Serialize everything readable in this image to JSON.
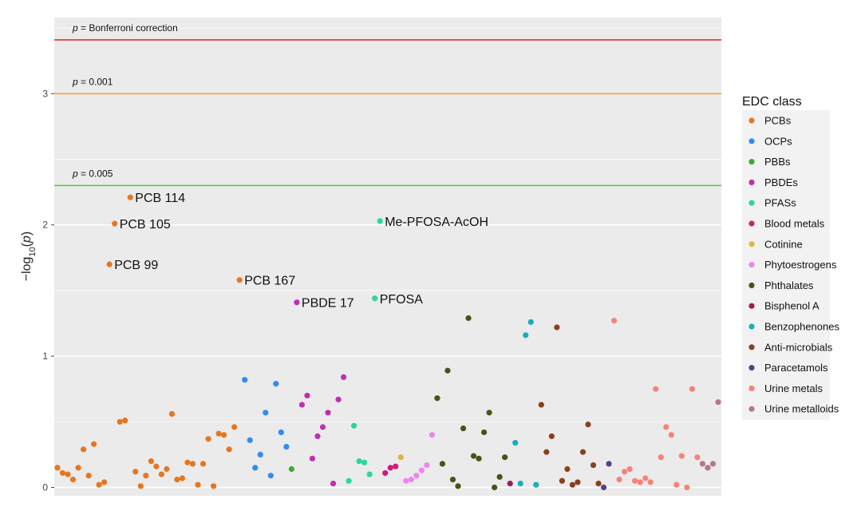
{
  "chart_data": {
    "type": "scatter",
    "ylabel_prefix": "−log",
    "ylabel_sub": "10",
    "ylabel_suffix": "(p)",
    "ylabel_var": "p",
    "ylim": [
      -0.05,
      3.6
    ],
    "yticks": [
      0,
      1,
      2,
      3
    ],
    "grid": true,
    "legend_position": "right",
    "legend_title": "EDC class",
    "reference_lines": [
      {
        "label_italic": "p",
        "label_rest": " = Bonferroni correction",
        "value": 3.41,
        "color": "#e8302e"
      },
      {
        "label_italic": "p",
        "label_rest": " = 0.001",
        "value": 3.0,
        "color": "#f6a623"
      },
      {
        "label_italic": "p",
        "label_rest": " = 0.005",
        "value": 2.3,
        "color": "#3fd42b"
      }
    ],
    "series": [
      {
        "name": "PCBs",
        "color": "#e6761f",
        "points": [
          [
            1,
            0.15
          ],
          [
            2,
            0.11
          ],
          [
            3,
            0.1
          ],
          [
            4,
            0.06
          ],
          [
            5,
            0.15
          ],
          [
            6,
            0.29
          ],
          [
            7,
            0.09
          ],
          [
            8,
            0.33
          ],
          [
            9,
            0.02
          ],
          [
            10,
            0.04
          ],
          [
            11,
            1.7
          ],
          [
            12,
            2.01
          ],
          [
            13,
            0.5
          ],
          [
            14,
            0.51
          ],
          [
            15,
            2.21
          ],
          [
            16,
            0.12
          ],
          [
            17,
            0.01
          ],
          [
            18,
            0.09
          ],
          [
            19,
            0.2
          ],
          [
            20,
            0.16
          ],
          [
            21,
            0.1
          ],
          [
            22,
            0.14
          ],
          [
            23,
            0.56
          ],
          [
            24,
            0.06
          ],
          [
            25,
            0.07
          ],
          [
            26,
            0.19
          ],
          [
            27,
            0.18
          ],
          [
            28,
            0.02
          ],
          [
            29,
            0.18
          ],
          [
            30,
            0.37
          ],
          [
            31,
            0.01
          ],
          [
            32,
            0.41
          ],
          [
            33,
            0.4
          ],
          [
            34,
            0.29
          ],
          [
            35,
            0.46
          ],
          [
            36,
            1.58
          ]
        ]
      },
      {
        "name": "OCPs",
        "color": "#2f8df0",
        "points": [
          [
            37,
            0.82
          ],
          [
            38,
            0.36
          ],
          [
            39,
            0.15
          ],
          [
            40,
            0.25
          ],
          [
            41,
            0.57
          ],
          [
            42,
            0.09
          ],
          [
            43,
            0.79
          ],
          [
            44,
            0.42
          ],
          [
            45,
            0.31
          ]
        ]
      },
      {
        "name": "PBBs",
        "color": "#3aab35",
        "points": [
          [
            46,
            0.14
          ]
        ]
      },
      {
        "name": "PBDEs",
        "color": "#c02fb0",
        "points": [
          [
            47,
            1.41
          ],
          [
            48,
            0.63
          ],
          [
            49,
            0.7
          ],
          [
            50,
            0.22
          ],
          [
            51,
            0.39
          ],
          [
            52,
            0.46
          ],
          [
            53,
            0.57
          ],
          [
            54,
            0.03
          ],
          [
            55,
            0.67
          ],
          [
            56,
            0.84
          ]
        ]
      },
      {
        "name": "PFASs",
        "color": "#28d79a",
        "points": [
          [
            57,
            0.05
          ],
          [
            58,
            0.47
          ],
          [
            59,
            0.2
          ],
          [
            60,
            0.19
          ],
          [
            61,
            0.1
          ],
          [
            62,
            1.44
          ],
          [
            63,
            2.03
          ]
        ]
      },
      {
        "name": "Blood metals",
        "color": "#d21980",
        "points": [
          [
            64,
            0.11
          ],
          [
            65,
            0.15
          ],
          [
            66,
            0.16
          ]
        ]
      },
      {
        "name": "Cotinine",
        "color": "#e3b53e",
        "points": [
          [
            67,
            0.23
          ]
        ]
      },
      {
        "name": "Phytoestrogens",
        "color": "#ee86f0",
        "points": [
          [
            68,
            0.05
          ],
          [
            69,
            0.06
          ],
          [
            70,
            0.09
          ],
          [
            71,
            0.13
          ],
          [
            72,
            0.17
          ],
          [
            73,
            0.4
          ]
        ]
      },
      {
        "name": "Phthalates",
        "color": "#4d5116",
        "points": [
          [
            74,
            0.68
          ],
          [
            75,
            0.18
          ],
          [
            76,
            0.89
          ],
          [
            77,
            0.06
          ],
          [
            78,
            0.01
          ],
          [
            79,
            0.45
          ],
          [
            80,
            1.29
          ],
          [
            81,
            0.24
          ],
          [
            82,
            0.22
          ],
          [
            83,
            0.42
          ],
          [
            84,
            0.57
          ],
          [
            85,
            0.0
          ],
          [
            86,
            0.08
          ],
          [
            87,
            0.23
          ]
        ]
      },
      {
        "name": "Bisphenol A",
        "color": "#9a1d5a",
        "points": [
          [
            88,
            0.03
          ]
        ]
      },
      {
        "name": "Benzophenones",
        "color": "#17aebd",
        "points": [
          [
            89,
            0.34
          ],
          [
            90,
            0.03
          ],
          [
            91,
            1.16
          ],
          [
            92,
            1.26
          ],
          [
            93,
            0.02
          ]
        ]
      },
      {
        "name": "Anti-microbials",
        "color": "#8c3f1a",
        "points": [
          [
            94,
            0.63
          ],
          [
            95,
            0.27
          ],
          [
            96,
            0.39
          ],
          [
            97,
            1.22
          ],
          [
            98,
            0.05
          ],
          [
            99,
            0.14
          ],
          [
            100,
            0.02
          ],
          [
            101,
            0.04
          ],
          [
            102,
            0.27
          ],
          [
            103,
            0.48
          ],
          [
            104,
            0.17
          ],
          [
            105,
            0.03
          ]
        ]
      },
      {
        "name": "Paracetamols",
        "color": "#5a3f84",
        "points": [
          [
            106,
            0.0
          ],
          [
            107,
            0.18
          ]
        ]
      },
      {
        "name": "Urine metals",
        "color": "#f4837a",
        "points": [
          [
            108,
            1.27
          ],
          [
            109,
            0.06
          ],
          [
            110,
            0.12
          ],
          [
            111,
            0.14
          ],
          [
            112,
            0.05
          ],
          [
            113,
            0.04
          ],
          [
            114,
            0.07
          ],
          [
            115,
            0.04
          ],
          [
            116,
            0.75
          ],
          [
            117,
            0.23
          ],
          [
            118,
            0.46
          ],
          [
            119,
            0.4
          ],
          [
            120,
            0.02
          ],
          [
            121,
            0.24
          ],
          [
            122,
            0.0
          ],
          [
            123,
            0.75
          ],
          [
            124,
            0.23
          ]
        ]
      },
      {
        "name": "Urine metalloids",
        "color": "#b5768f",
        "points": [
          [
            125,
            0.18
          ],
          [
            126,
            0.15
          ],
          [
            127,
            0.18
          ],
          [
            128,
            0.65
          ]
        ]
      }
    ],
    "annotations": [
      {
        "label": "PCB 114",
        "x": 15,
        "y": 2.21
      },
      {
        "label": "PCB 105",
        "x": 12,
        "y": 2.01
      },
      {
        "label": "PCB 99",
        "x": 11,
        "y": 1.7
      },
      {
        "label": "PCB 167",
        "x": 36,
        "y": 1.58
      },
      {
        "label": "PBDE 17",
        "x": 47,
        "y": 1.41
      },
      {
        "label": "PFOSA",
        "x": 62,
        "y": 1.44
      },
      {
        "label": "Me-PFOSA-AcOH",
        "x": 63,
        "y": 2.03
      }
    ]
  }
}
